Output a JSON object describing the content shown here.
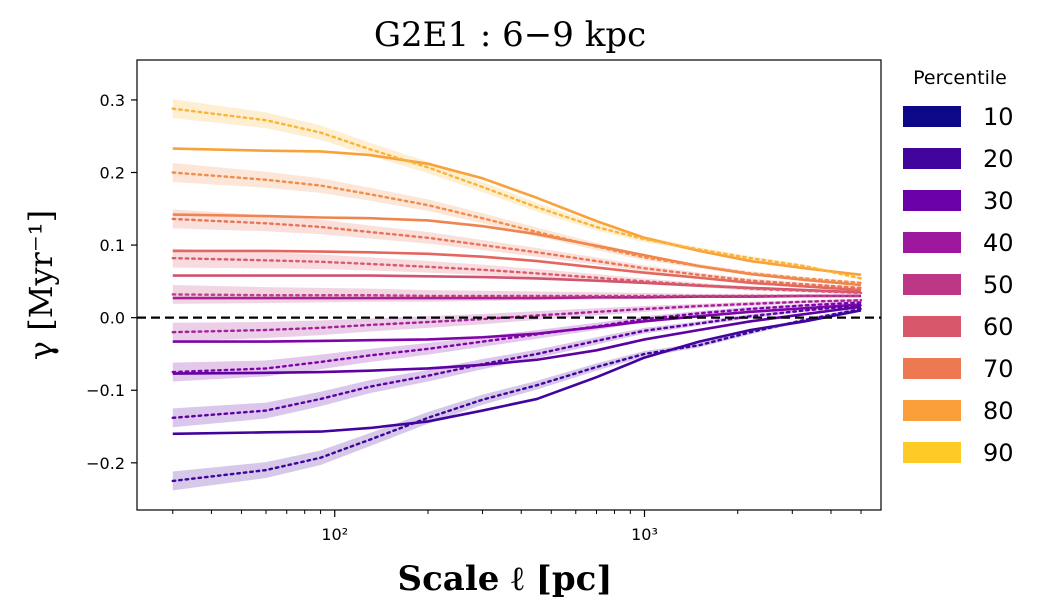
{
  "chart_data": {
    "type": "line",
    "title": "G2E1 : 6−9 kpc",
    "xlabel": "Scale ℓ  [pc]",
    "ylabel": "γ [Myr⁻¹]",
    "xscale": "log",
    "xlim": [
      23,
      5800
    ],
    "ylim": [
      -0.265,
      0.355
    ],
    "yticks": [
      -0.2,
      -0.1,
      0.0,
      0.1,
      0.2,
      0.3
    ],
    "ytick_labels": [
      "−0.2",
      "−0.1",
      "0.0",
      "0.1",
      "0.2",
      "0.3"
    ],
    "xticks": [
      100,
      1000
    ],
    "xtick_labels": [
      "10²",
      "10³"
    ],
    "zero_line": true,
    "x": [
      30,
      60,
      90,
      130,
      200,
      300,
      450,
      700,
      1000,
      1500,
      2200,
      3300,
      5000
    ],
    "legend": {
      "title": "Percentile",
      "placement": "outside-right",
      "entries": [
        {
          "label": "10",
          "color": "#0d0887"
        },
        {
          "label": "20",
          "color": "#41049d"
        },
        {
          "label": "30",
          "color": "#6a00a8"
        },
        {
          "label": "40",
          "color": "#9c179e"
        },
        {
          "label": "50",
          "color": "#bd3786"
        },
        {
          "label": "60",
          "color": "#d8576b"
        },
        {
          "label": "70",
          "color": "#ed7953"
        },
        {
          "label": "80",
          "color": "#fb9f3a"
        },
        {
          "label": "90",
          "color": "#fdca26"
        }
      ]
    },
    "solid_series": [
      {
        "name": "solid-1",
        "color": "#41049d",
        "values": [
          -0.16,
          -0.158,
          -0.157,
          -0.152,
          -0.143,
          -0.128,
          -0.112,
          -0.082,
          -0.055,
          -0.033,
          -0.017,
          -0.005,
          0.01
        ]
      },
      {
        "name": "solid-2",
        "color": "#5c02a3",
        "values": [
          -0.077,
          -0.076,
          -0.075,
          -0.073,
          -0.07,
          -0.065,
          -0.058,
          -0.045,
          -0.03,
          -0.017,
          -0.005,
          0.005,
          0.015
        ]
      },
      {
        "name": "solid-3",
        "color": "#7e03a8",
        "values": [
          -0.033,
          -0.033,
          -0.032,
          -0.031,
          -0.03,
          -0.027,
          -0.022,
          -0.013,
          -0.005,
          0.002,
          0.008,
          0.013,
          0.018
        ]
      },
      {
        "name": "solid-4",
        "color": "#a62098",
        "values": [
          0.027,
          0.027,
          0.027,
          0.027,
          0.027,
          0.027,
          0.027,
          0.028,
          0.028,
          0.029,
          0.029,
          0.03,
          0.03
        ]
      },
      {
        "name": "solid-5",
        "color": "#d0546f",
        "values": [
          0.058,
          0.058,
          0.058,
          0.058,
          0.057,
          0.056,
          0.054,
          0.051,
          0.048,
          0.044,
          0.041,
          0.038,
          0.035
        ]
      },
      {
        "name": "solid-6",
        "color": "#e4675f",
        "values": [
          0.092,
          0.092,
          0.091,
          0.09,
          0.088,
          0.084,
          0.078,
          0.069,
          0.062,
          0.055,
          0.048,
          0.043,
          0.038
        ]
      },
      {
        "name": "solid-7",
        "color": "#f0844f",
        "values": [
          0.142,
          0.14,
          0.138,
          0.137,
          0.134,
          0.126,
          0.115,
          0.099,
          0.086,
          0.071,
          0.06,
          0.052,
          0.045
        ]
      },
      {
        "name": "solid-8",
        "color": "#f7a23c",
        "values": [
          0.233,
          0.23,
          0.229,
          0.224,
          0.212,
          0.192,
          0.165,
          0.133,
          0.11,
          0.092,
          0.078,
          0.068,
          0.059
        ]
      }
    ],
    "dotted_series": [
      {
        "name": "dotted-1",
        "color": "#41049d",
        "values": [
          -0.225,
          -0.21,
          -0.193,
          -0.168,
          -0.138,
          -0.113,
          -0.093,
          -0.068,
          -0.05,
          -0.038,
          -0.02,
          -0.003,
          0.012
        ]
      },
      {
        "name": "dotted-2",
        "color": "#5c02a3",
        "values": [
          -0.138,
          -0.128,
          -0.112,
          -0.095,
          -0.08,
          -0.064,
          -0.05,
          -0.032,
          -0.018,
          -0.008,
          0.002,
          0.01,
          0.017
        ]
      },
      {
        "name": "dotted-3",
        "color": "#7e03a8",
        "values": [
          -0.075,
          -0.07,
          -0.061,
          -0.052,
          -0.043,
          -0.033,
          -0.023,
          -0.012,
          -0.002,
          0.006,
          0.012,
          0.017,
          0.021
        ]
      },
      {
        "name": "dotted-4",
        "color": "#a62098",
        "values": [
          -0.02,
          -0.017,
          -0.014,
          -0.01,
          -0.006,
          -0.002,
          0.003,
          0.008,
          0.012,
          0.016,
          0.019,
          0.022,
          0.024
        ]
      },
      {
        "name": "dotted-5",
        "color": "#c53e80",
        "values": [
          0.032,
          0.031,
          0.031,
          0.031,
          0.03,
          0.03,
          0.03,
          0.03,
          0.03,
          0.03,
          0.03,
          0.03,
          0.03
        ]
      },
      {
        "name": "dotted-6",
        "color": "#da5b69",
        "values": [
          0.082,
          0.079,
          0.077,
          0.074,
          0.07,
          0.066,
          0.061,
          0.055,
          0.05,
          0.045,
          0.04,
          0.037,
          0.034
        ]
      },
      {
        "name": "dotted-7",
        "color": "#ea7357",
        "values": [
          0.136,
          0.13,
          0.125,
          0.118,
          0.11,
          0.1,
          0.09,
          0.078,
          0.068,
          0.059,
          0.051,
          0.046,
          0.041
        ]
      },
      {
        "name": "dotted-8",
        "color": "#f28c4a",
        "values": [
          0.2,
          0.19,
          0.182,
          0.17,
          0.155,
          0.137,
          0.118,
          0.098,
          0.083,
          0.071,
          0.061,
          0.054,
          0.048
        ]
      },
      {
        "name": "dotted-9",
        "color": "#fbb436",
        "values": [
          0.288,
          0.272,
          0.255,
          0.232,
          0.207,
          0.18,
          0.152,
          0.125,
          0.108,
          0.094,
          0.082,
          0.071,
          0.054
        ]
      }
    ],
    "band_half_width": [
      0.013,
      0.011,
      0.01,
      0.009,
      0.008,
      0.007,
      0.006,
      0.005,
      0.004,
      0.003,
      0.003,
      0.002,
      0.002
    ]
  }
}
